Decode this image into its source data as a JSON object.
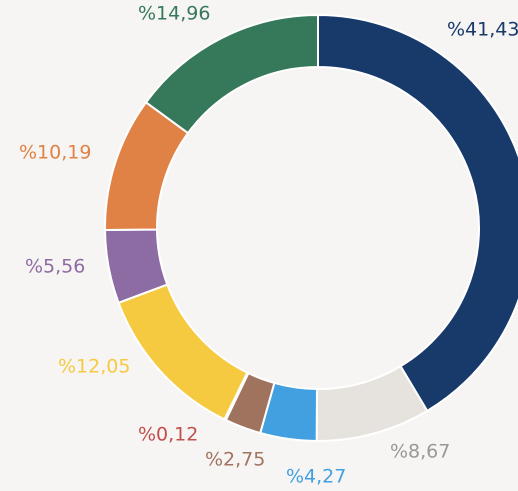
{
  "chart_data": {
    "type": "donut",
    "categories": [
      null,
      null,
      null,
      null,
      null,
      null,
      null,
      null,
      null
    ],
    "values": [
      41.43,
      8.67,
      4.27,
      2.75,
      0.12,
      12.05,
      5.56,
      10.19,
      14.96
    ],
    "value_labels": [
      "%41,43",
      "%8,67",
      "%4,27",
      "%2,75",
      "%0,12",
      "%12,05",
      "%5,56",
      "%10,19",
      "%14,96"
    ],
    "colors": [
      "#173a6b",
      "#e6e3de",
      "#42a0e0",
      "#a0735f",
      "#c0504d",
      "#f5c940",
      "#8d6ba3",
      "#e08245",
      "#35795a"
    ],
    "label_colors": [
      "#173a6b",
      "#9a9895",
      "#42a0e0",
      "#a0735f",
      "#c0504d",
      "#f5c940",
      "#8d6ba3",
      "#e08245",
      "#35795a"
    ]
  }
}
